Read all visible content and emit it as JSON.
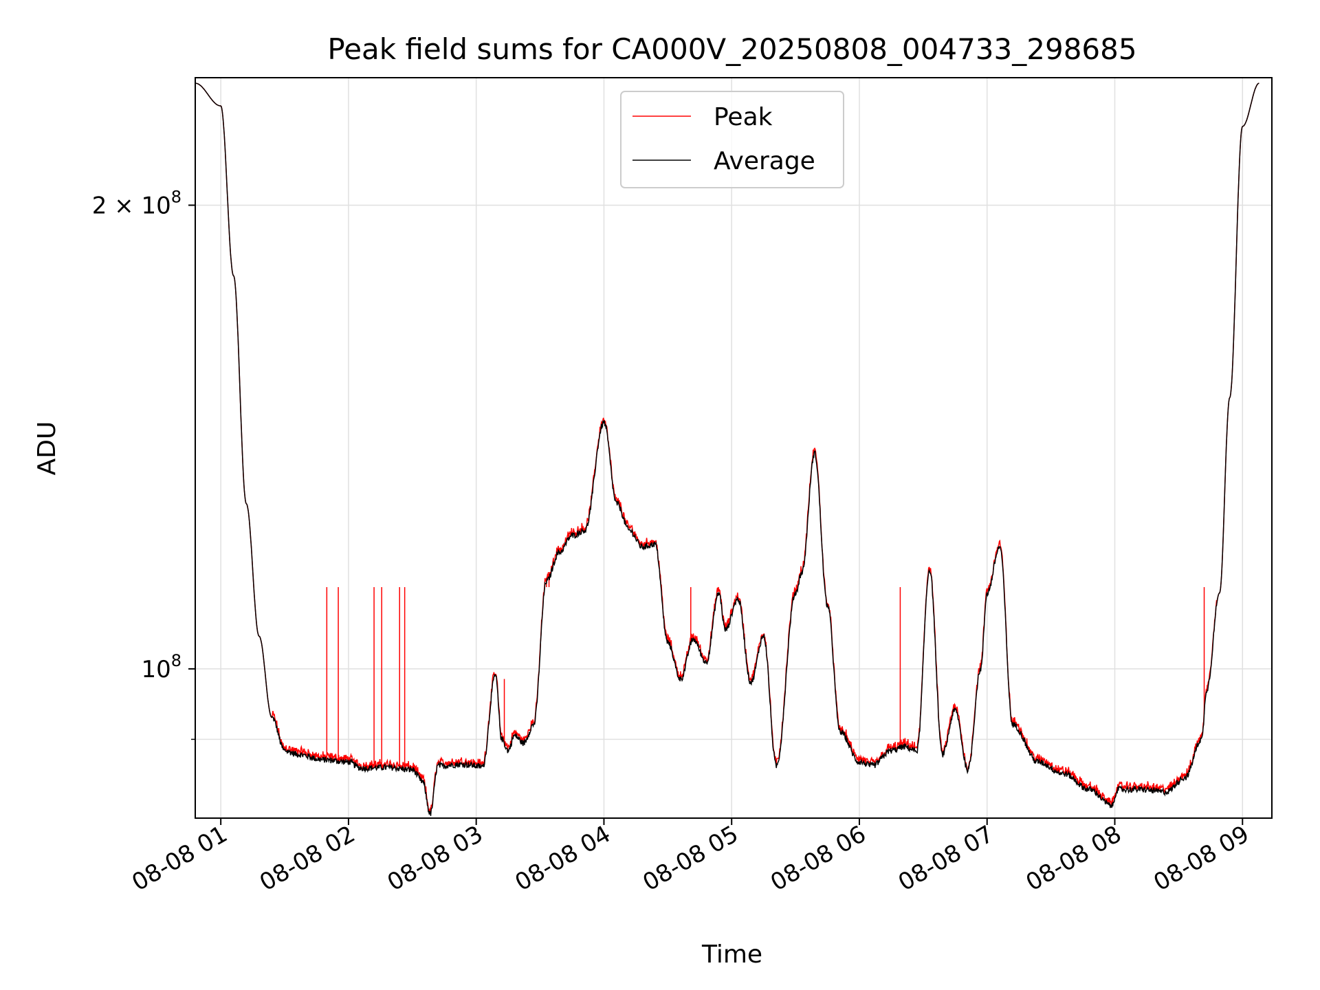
{
  "chart_data": {
    "type": "line",
    "title": "Peak field sums for CA000V_20250808_004733_298685",
    "xlabel": "Time",
    "ylabel": "ADU",
    "yscale": "log",
    "grid": true,
    "legend_position": "top-center",
    "xlim": [
      "2025-08-08 00:47",
      "2025-08-08 09:13"
    ],
    "ylim": [
      80000000,
      242000000
    ],
    "x_tick_labels": [
      "08-08 01",
      "08-08 02",
      "08-08 03",
      "08-08 04",
      "08-08 05",
      "08-08 06",
      "08-08 07",
      "08-08 08",
      "08-08 09"
    ],
    "x_tick_hours": [
      1,
      2,
      3,
      4,
      5,
      6,
      7,
      8,
      9
    ],
    "y_major_ticks": [
      {
        "value": 100000000,
        "label_mantissa": "",
        "label_base": "10",
        "label_exp": "8"
      },
      {
        "value": 200000000,
        "label_mantissa": "2 × ",
        "label_base": "10",
        "label_exp": "8"
      }
    ],
    "y_minor_ticks": [
      90000000
    ],
    "series": [
      {
        "name": "Average",
        "color": "#000000",
        "x_hours": [
          0.8,
          1.0,
          1.1,
          1.2,
          1.3,
          1.4,
          1.5,
          1.6,
          1.8,
          2.0,
          2.1,
          2.3,
          2.5,
          2.58,
          2.64,
          2.7,
          2.9,
          3.05,
          3.15,
          3.2,
          3.25,
          3.3,
          3.37,
          3.45,
          3.55,
          3.65,
          3.75,
          3.85,
          4.0,
          4.1,
          4.2,
          4.3,
          4.4,
          4.5,
          4.6,
          4.7,
          4.8,
          4.9,
          4.95,
          5.05,
          5.15,
          5.25,
          5.35,
          5.5,
          5.55,
          5.65,
          5.75,
          5.85,
          6.0,
          6.1,
          6.25,
          6.35,
          6.45,
          6.55,
          6.65,
          6.75,
          6.85,
          6.95,
          7.0,
          7.1,
          7.2,
          7.4,
          7.6,
          7.8,
          7.98,
          8.02,
          8.2,
          8.4,
          8.55,
          8.68,
          8.72,
          8.82,
          8.9,
          9.0,
          9.13
        ],
        "values": [
          240000000,
          232000000,
          180000000,
          128000000,
          105000000,
          93000000,
          88500000,
          88000000,
          87300000,
          87000000,
          86200000,
          86300000,
          86000000,
          84500000,
          80500000,
          86500000,
          86700000,
          86400000,
          99000000,
          90000000,
          88500000,
          90500000,
          89500000,
          92000000,
          114000000,
          119000000,
          122000000,
          123000000,
          144500000,
          128000000,
          123000000,
          120000000,
          120500000,
          104000000,
          98500000,
          104500000,
          101000000,
          112000000,
          106000000,
          111000000,
          98000000,
          105000000,
          86500000,
          112000000,
          115500000,
          138000000,
          110000000,
          91000000,
          87000000,
          86500000,
          88500000,
          89000000,
          88500000,
          116000000,
          88000000,
          94000000,
          86000000,
          100000000,
          112000000,
          120000000,
          92000000,
          87000000,
          85500000,
          83500000,
          81500000,
          83500000,
          83500000,
          83200000,
          85000000,
          90000000,
          97000000,
          112000000,
          150000000,
          225000000,
          240000000
        ]
      },
      {
        "name": "Peak",
        "color": "#ff0000",
        "spikes": [
          {
            "x_hour": 1.83,
            "value": 113000000
          },
          {
            "x_hour": 1.92,
            "value": 113000000
          },
          {
            "x_hour": 2.2,
            "value": 113000000
          },
          {
            "x_hour": 2.26,
            "value": 113000000
          },
          {
            "x_hour": 2.4,
            "value": 113000000
          },
          {
            "x_hour": 2.44,
            "value": 113000000
          },
          {
            "x_hour": 3.22,
            "value": 98500000
          },
          {
            "x_hour": 3.55,
            "value": 113000000
          },
          {
            "x_hour": 3.57,
            "value": 113000000
          },
          {
            "x_hour": 4.68,
            "value": 113000000
          },
          {
            "x_hour": 6.32,
            "value": 113000000
          },
          {
            "x_hour": 8.7,
            "value": 113000000
          }
        ]
      }
    ]
  }
}
